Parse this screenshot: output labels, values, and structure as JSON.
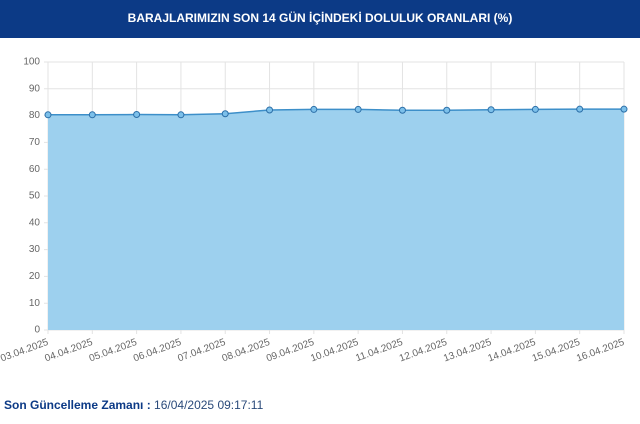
{
  "chart_data": {
    "type": "area",
    "title": "BARAJLARIMIZIN SON 14 GÜN İÇİNDEKİ DOLULUK ORANLARI (%)",
    "categories": [
      "03.04.2025",
      "04.04.2025",
      "05.04.2025",
      "06.04.2025",
      "07.04.2025",
      "08.04.2025",
      "09.04.2025",
      "10.04.2025",
      "11.04.2025",
      "12.04.2025",
      "13.04.2025",
      "14.04.2025",
      "15.04.2025",
      "16.04.2025"
    ],
    "series": [
      {
        "name": "Doluluk",
        "color": "#3d8fc9",
        "values": [
          80.3,
          80.3,
          80.4,
          80.3,
          80.7,
          82.1,
          82.3,
          82.3,
          82.0,
          82.0,
          82.2,
          82.3,
          82.4,
          82.4
        ]
      }
    ],
    "fill": "#9dd0ee",
    "ylim": [
      0,
      100
    ],
    "yticks": [
      0,
      10,
      20,
      30,
      40,
      50,
      60,
      70,
      80,
      90,
      100
    ],
    "grid": true
  },
  "footer": {
    "label": "Son Güncelleme Zamanı :",
    "value": "16/04/2025 09:17:11"
  }
}
